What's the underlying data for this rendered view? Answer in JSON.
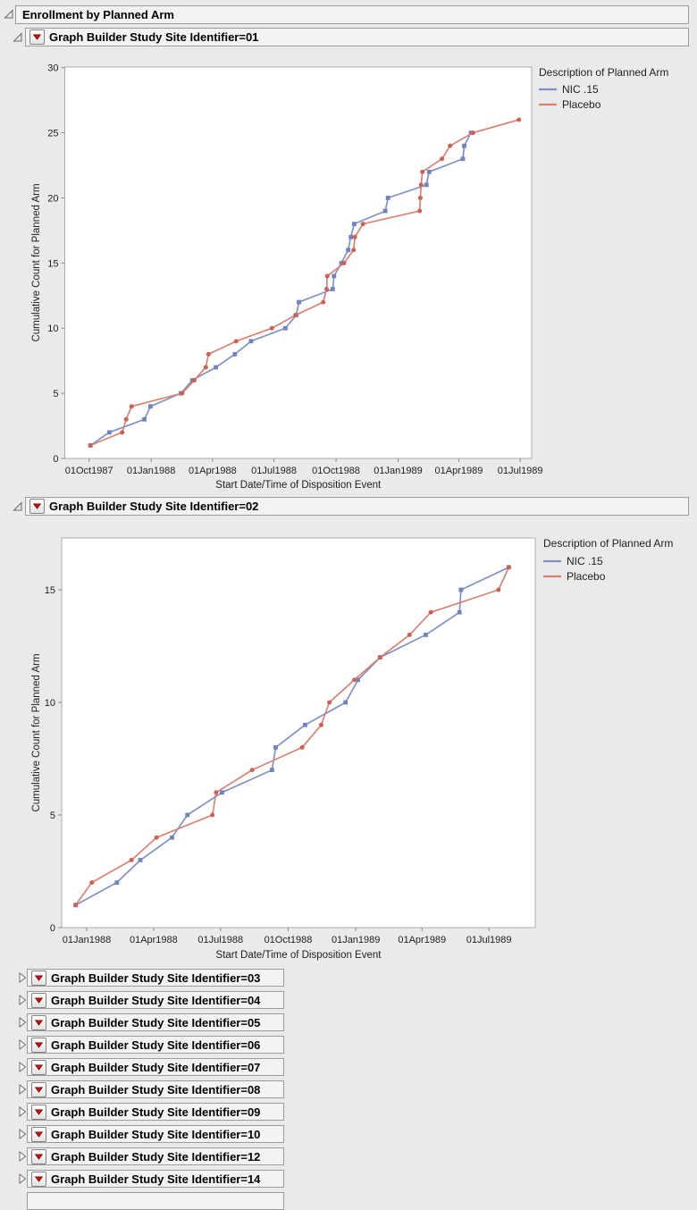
{
  "outline": {
    "root_title": "Enrollment by Planned Arm",
    "expanded_sections": [
      {
        "title": "Graph Builder Study Site Identifier=01"
      },
      {
        "title": "Graph Builder Study Site Identifier=02"
      }
    ],
    "collapsed_sections": [
      {
        "title": "Graph Builder Study Site Identifier=03"
      },
      {
        "title": "Graph Builder Study Site Identifier=04"
      },
      {
        "title": "Graph Builder Study Site Identifier=05"
      },
      {
        "title": "Graph Builder Study Site Identifier=06"
      },
      {
        "title": "Graph Builder Study Site Identifier=07"
      },
      {
        "title": "Graph Builder Study Site Identifier=08"
      },
      {
        "title": "Graph Builder Study Site Identifier=09"
      },
      {
        "title": "Graph Builder Study Site Identifier=10"
      },
      {
        "title": "Graph Builder Study Site Identifier=12"
      },
      {
        "title": "Graph Builder Study Site Identifier=14"
      }
    ]
  },
  "icons": {
    "disclosure_expanded": "open-triangle-icon",
    "disclosure_collapsed": "closed-triangle-icon",
    "menu_button": "red-triangle-menu-icon"
  },
  "colors": {
    "nic_line": "#8191c4",
    "nic_marker": "#6f83bc",
    "placebo_line": "#d98175",
    "placebo_marker": "#cf6052",
    "plot_background": "#ffffff",
    "page_background": "#eaeaea"
  },
  "chart_data": [
    {
      "type": "line",
      "group": "Study Site Identifier=01",
      "xlabel": "Start Date/Time of Disposition Event",
      "ylabel": "Cumulative Count for Planned Arm",
      "legend_title": "Description of Planned Arm",
      "legend_position": "right",
      "grid": false,
      "ylim": [
        0,
        30.05
      ],
      "y_ticks": [
        0,
        5,
        10,
        15,
        20,
        25,
        30
      ],
      "xlim": [
        "1987-08-26",
        "1989-07-18"
      ],
      "x_ticks": [
        {
          "label": "01Oct1987",
          "date": "1987-10-01"
        },
        {
          "label": "01Jan1988",
          "date": "1988-01-01"
        },
        {
          "label": "01Apr1988",
          "date": "1988-04-01"
        },
        {
          "label": "01Jul1988",
          "date": "1988-07-01"
        },
        {
          "label": "01Oct1988",
          "date": "1988-10-01"
        },
        {
          "label": "01Jan1989",
          "date": "1989-01-01"
        },
        {
          "label": "01Apr1989",
          "date": "1989-04-01"
        },
        {
          "label": "01Jul1989",
          "date": "1989-07-01"
        }
      ],
      "series": [
        {
          "name": "NIC .15",
          "marker": "square",
          "line_color": "#8191c4",
          "marker_color": "#6f83bc",
          "points": [
            [
              "1987-10-03",
              1
            ],
            [
              "1987-10-31",
              2
            ],
            [
              "1987-12-22",
              3
            ],
            [
              "1987-12-31",
              4
            ],
            [
              "1988-02-14",
              5
            ],
            [
              "1988-03-02",
              6
            ],
            [
              "1988-04-06",
              7
            ],
            [
              "1988-05-04",
              8
            ],
            [
              "1988-05-28",
              9
            ],
            [
              "1988-07-18",
              10
            ],
            [
              "1988-08-03",
              11
            ],
            [
              "1988-08-07",
              12
            ],
            [
              "1988-09-26",
              13
            ],
            [
              "1988-09-28",
              14
            ],
            [
              "1988-10-09",
              15
            ],
            [
              "1988-10-19",
              16
            ],
            [
              "1988-10-23",
              17
            ],
            [
              "1988-10-28",
              18
            ],
            [
              "1988-12-13",
              19
            ],
            [
              "1988-12-17",
              20
            ],
            [
              "1989-02-12",
              21
            ],
            [
              "1989-02-16",
              22
            ],
            [
              "1989-04-07",
              23
            ],
            [
              "1989-04-09",
              24
            ],
            [
              "1989-04-19",
              25
            ]
          ]
        },
        {
          "name": "Placebo",
          "marker": "circle",
          "line_color": "#d98175",
          "marker_color": "#cf6052",
          "points": [
            [
              "1987-10-03",
              1
            ],
            [
              "1987-11-19",
              2
            ],
            [
              "1987-11-25",
              3
            ],
            [
              "1987-12-03",
              4
            ],
            [
              "1988-02-16",
              5
            ],
            [
              "1988-03-05",
              6
            ],
            [
              "1988-03-22",
              7
            ],
            [
              "1988-03-26",
              8
            ],
            [
              "1988-05-06",
              9
            ],
            [
              "1988-06-28",
              10
            ],
            [
              "1988-08-02",
              11
            ],
            [
              "1988-09-12",
              12
            ],
            [
              "1988-09-17",
              13
            ],
            [
              "1988-09-18",
              14
            ],
            [
              "1988-10-13",
              15
            ],
            [
              "1988-10-27",
              16
            ],
            [
              "1988-10-29",
              17
            ],
            [
              "1988-11-10",
              18
            ],
            [
              "1989-02-02",
              19
            ],
            [
              "1989-02-03",
              20
            ],
            [
              "1989-02-04",
              21
            ],
            [
              "1989-02-06",
              22
            ],
            [
              "1989-03-07",
              23
            ],
            [
              "1989-03-19",
              24
            ],
            [
              "1989-04-22",
              25
            ],
            [
              "1989-06-29",
              26
            ]
          ]
        }
      ]
    },
    {
      "type": "line",
      "group": "Study Site Identifier=02",
      "xlabel": "Start Date/Time of Disposition Event",
      "ylabel": "Cumulative Count for Planned Arm",
      "legend_title": "Description of Planned Arm",
      "legend_position": "right",
      "grid": false,
      "ylim": [
        0,
        17.3
      ],
      "y_ticks": [
        0,
        5,
        10,
        15
      ],
      "xlim": [
        "1987-11-28",
        "1989-09-02"
      ],
      "x_ticks": [
        {
          "label": "01Jan1988",
          "date": "1988-01-01"
        },
        {
          "label": "01Apr1988",
          "date": "1988-04-01"
        },
        {
          "label": "01Jul1988",
          "date": "1988-07-01"
        },
        {
          "label": "01Oct1988",
          "date": "1988-10-01"
        },
        {
          "label": "01Jan1989",
          "date": "1989-01-01"
        },
        {
          "label": "01Apr1989",
          "date": "1989-04-01"
        },
        {
          "label": "01Jul1989",
          "date": "1989-07-01"
        }
      ],
      "series": [
        {
          "name": "NIC .15",
          "marker": "square",
          "line_color": "#8191c4",
          "marker_color": "#6f83bc",
          "points": [
            [
              "1987-12-17",
              1
            ],
            [
              "1988-02-11",
              2
            ],
            [
              "1988-03-14",
              3
            ],
            [
              "1988-04-26",
              4
            ],
            [
              "1988-05-17",
              5
            ],
            [
              "1988-07-03",
              6
            ],
            [
              "1988-09-09",
              7
            ],
            [
              "1988-09-14",
              8
            ],
            [
              "1988-10-24",
              9
            ],
            [
              "1988-12-18",
              10
            ],
            [
              "1989-01-04",
              11
            ],
            [
              "1989-02-03",
              12
            ],
            [
              "1989-04-06",
              13
            ],
            [
              "1989-05-22",
              14
            ],
            [
              "1989-05-24",
              15
            ],
            [
              "1989-07-28",
              16
            ]
          ]
        },
        {
          "name": "Placebo",
          "marker": "circle",
          "line_color": "#d98175",
          "marker_color": "#cf6052",
          "points": [
            [
              "1987-12-17",
              1
            ],
            [
              "1988-01-08",
              2
            ],
            [
              "1988-03-02",
              3
            ],
            [
              "1988-04-05",
              4
            ],
            [
              "1988-06-20",
              5
            ],
            [
              "1988-06-25",
              6
            ],
            [
              "1988-08-13",
              7
            ],
            [
              "1988-10-20",
              8
            ],
            [
              "1988-11-15",
              9
            ],
            [
              "1988-11-26",
              10
            ],
            [
              "1988-12-30",
              11
            ],
            [
              "1989-02-03",
              12
            ],
            [
              "1989-03-15",
              13
            ],
            [
              "1989-04-13",
              14
            ],
            [
              "1989-07-14",
              15
            ],
            [
              "1989-07-28",
              16
            ]
          ]
        }
      ]
    }
  ]
}
